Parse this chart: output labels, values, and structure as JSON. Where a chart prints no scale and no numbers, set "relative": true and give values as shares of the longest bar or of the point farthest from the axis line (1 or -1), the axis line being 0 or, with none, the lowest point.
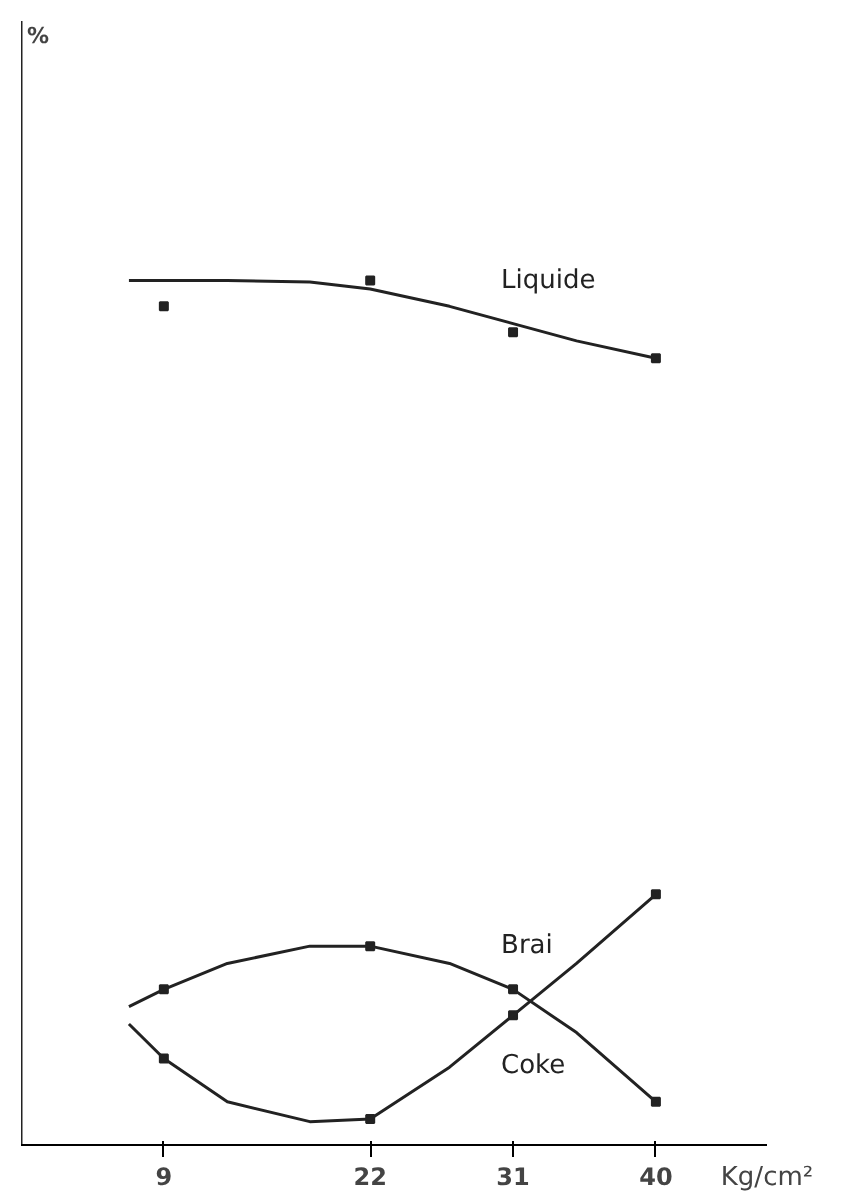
{
  "chart_data": {
    "type": "line",
    "relative": true,
    "xlabel": "Kg/cm²",
    "xlim": [
      0,
      47
    ],
    "xticks": [
      9,
      22,
      31,
      40
    ],
    "grid": false,
    "series": [
      {
        "type": "scatter",
        "marker": "square",
        "color": "#222222",
        "x": [
          9,
          22,
          31,
          40
        ],
        "values": [
          0.97,
          1.0,
          0.94,
          0.91
        ]
      },
      {
        "type": "scatter",
        "marker": "square",
        "color": "#222222",
        "x": [
          9,
          22,
          31,
          40
        ],
        "values": [
          0.18,
          0.23,
          0.18,
          0.05
        ]
      },
      {
        "type": "scatter",
        "marker": "square",
        "color": "#222222",
        "x": [
          9,
          22,
          31,
          40
        ],
        "values": [
          0.1,
          0.03,
          0.15,
          0.29
        ]
      },
      {
        "name": "Liquide",
        "color": "#222222",
        "line_style": "solid",
        "x": [
          6.8,
          13,
          18.2,
          22,
          27,
          31,
          35,
          40
        ],
        "values": [
          1.0,
          1.0,
          0.998,
          0.99,
          0.97,
          0.95,
          0.93,
          0.91
        ]
      },
      {
        "name": "Brai",
        "color": "#222222",
        "line_style": "solid",
        "x": [
          6.8,
          9,
          13,
          18.2,
          22,
          27,
          31,
          35,
          40
        ],
        "values": [
          0.16,
          0.18,
          0.21,
          0.23,
          0.23,
          0.21,
          0.18,
          0.13,
          0.05
        ]
      },
      {
        "name": "Coke",
        "color": "#222222",
        "line_style": "solid",
        "x": [
          6.8,
          9,
          13,
          18.2,
          22,
          27,
          31,
          35,
          40
        ],
        "values": [
          0.14,
          0.1,
          0.05,
          0.027,
          0.03,
          0.09,
          0.15,
          0.21,
          0.29
        ]
      }
    ],
    "annotations": [
      "%"
    ]
  }
}
